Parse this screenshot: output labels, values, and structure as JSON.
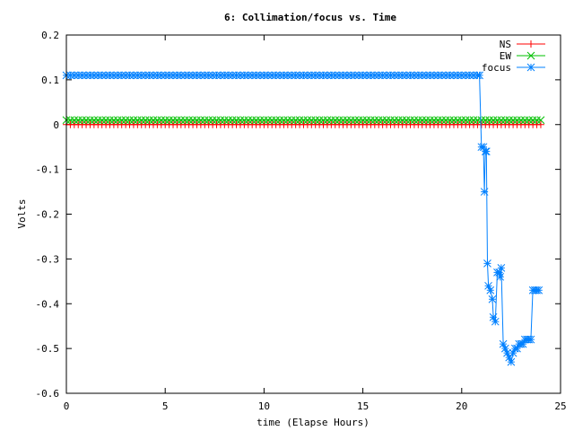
{
  "chart_data": {
    "type": "line",
    "title": "6: Collimation/focus vs. Time",
    "xlabel": "time (Elapse Hours)",
    "ylabel": "Volts",
    "xlim": [
      0,
      25
    ],
    "ylim": [
      -0.6,
      0.2
    ],
    "xticks": [
      0,
      5,
      10,
      15,
      20,
      25
    ],
    "yticks": [
      -0.6,
      -0.5,
      -0.4,
      -0.3,
      -0.2,
      -0.1,
      0,
      0.1,
      0.2
    ],
    "xtick_labels": [
      "0",
      "5",
      "10",
      "15",
      "20",
      "25"
    ],
    "ytick_labels": [
      "-0.6",
      "-0.5",
      "-0.4",
      "-0.3",
      "-0.2",
      "-0.1",
      "0",
      "0.1",
      "0.2"
    ],
    "grid": false,
    "legend_position": "top-right",
    "series": [
      {
        "name": "NS",
        "color": "#ff0000",
        "marker": "plus",
        "x_start": 0,
        "x_end": 24.0,
        "x_step": 0.2,
        "value": 0.0
      },
      {
        "name": "EW",
        "color": "#00c000",
        "marker": "cross",
        "x_start": 0,
        "x_end": 24.0,
        "x_step": 0.2,
        "value": 0.01
      },
      {
        "name": "focus",
        "color": "#0080ff",
        "marker": "star",
        "flat_x_start": 0,
        "flat_x_end": 20.8,
        "flat_x_step": 0.2,
        "flat_value": 0.11,
        "points": [
          [
            20.9,
            0.11
          ],
          [
            21.0,
            -0.05
          ],
          [
            21.1,
            -0.05
          ],
          [
            21.15,
            -0.15
          ],
          [
            21.2,
            -0.06
          ],
          [
            21.25,
            -0.06
          ],
          [
            21.3,
            -0.31
          ],
          [
            21.35,
            -0.36
          ],
          [
            21.45,
            -0.37
          ],
          [
            21.55,
            -0.39
          ],
          [
            21.6,
            -0.43
          ],
          [
            21.7,
            -0.44
          ],
          [
            21.8,
            -0.33
          ],
          [
            21.9,
            -0.33
          ],
          [
            21.95,
            -0.34
          ],
          [
            22.0,
            -0.32
          ],
          [
            22.1,
            -0.49
          ],
          [
            22.2,
            -0.5
          ],
          [
            22.3,
            -0.51
          ],
          [
            22.4,
            -0.52
          ],
          [
            22.5,
            -0.53
          ],
          [
            22.6,
            -0.51
          ],
          [
            22.7,
            -0.5
          ],
          [
            22.8,
            -0.5
          ],
          [
            22.9,
            -0.49
          ],
          [
            23.0,
            -0.49
          ],
          [
            23.1,
            -0.49
          ],
          [
            23.2,
            -0.48
          ],
          [
            23.3,
            -0.48
          ],
          [
            23.4,
            -0.48
          ],
          [
            23.5,
            -0.48
          ],
          [
            23.6,
            -0.37
          ],
          [
            23.7,
            -0.37
          ],
          [
            23.8,
            -0.37
          ],
          [
            23.9,
            -0.37
          ]
        ]
      }
    ]
  }
}
